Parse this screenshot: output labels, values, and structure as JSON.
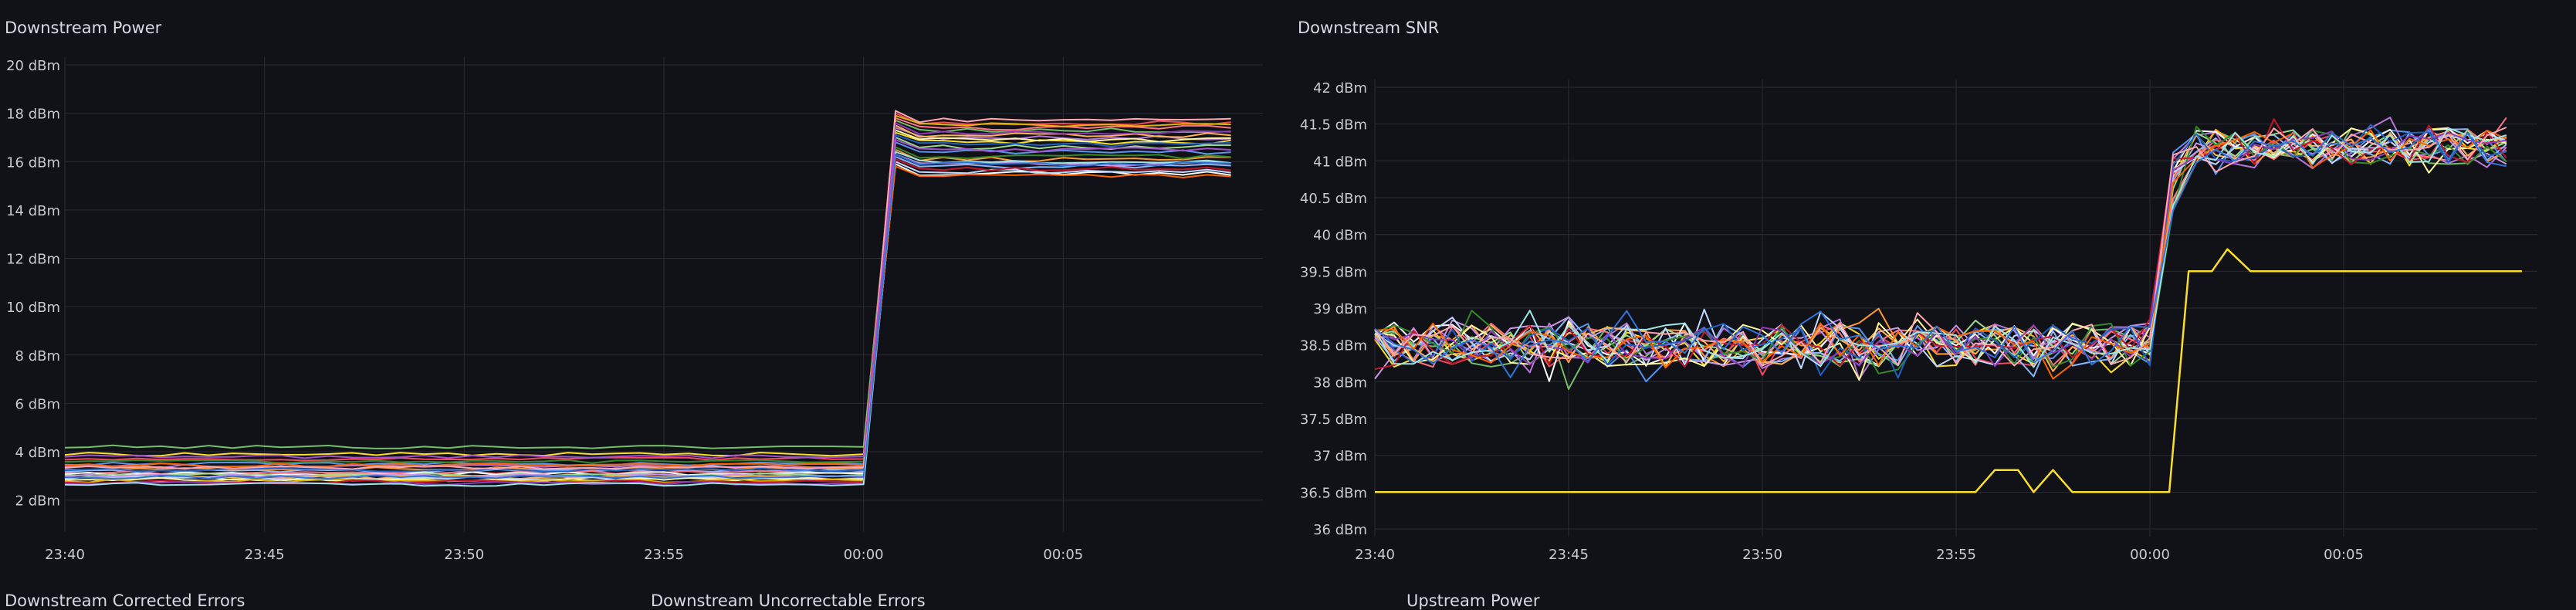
{
  "panels": {
    "power_title": "Downstream Power",
    "snr_title": "Downstream SNR",
    "bottom_titles": [
      "Downstream Corrected Errors",
      "Downstream Uncorrectable Errors",
      "Upstream Power"
    ]
  },
  "chart_data": [
    {
      "type": "line",
      "title": "Downstream Power",
      "xlabel": "",
      "ylabel": "",
      "x_ticks": [
        "23:40",
        "23:45",
        "23:50",
        "23:55",
        "00:00",
        "00:05"
      ],
      "y_ticks": [
        "2 dBm",
        "4 dBm",
        "6 dBm",
        "8 dBm",
        "10 dBm",
        "12 dBm",
        "14 dBm",
        "16 dBm",
        "18 dBm",
        "20 dBm"
      ],
      "ylim": [
        1,
        20
      ],
      "grid": true,
      "series_colors": [
        "#73bf69",
        "#fade2a",
        "#f2495c",
        "#5794f2",
        "#b877d9",
        "#ff9830",
        "#8ab8ff",
        "#ff7383",
        "#ffffff",
        "#96d98d",
        "#ca95e5",
        "#ffb357",
        "#c0d8ff",
        "#fff899",
        "#e0b400",
        "#37872d",
        "#c4162a",
        "#1f60c4",
        "#8f3bb8",
        "#fa6400",
        "#9fe5e5",
        "#ffa6b0",
        "#3274d9",
        "#a352cc"
      ],
      "series_levels": [
        {
          "before": 4.2,
          "after": 17.3
        },
        {
          "before": 3.9,
          "after": 16.8
        },
        {
          "before": 3.7,
          "after": 17.6
        },
        {
          "before": 3.5,
          "after": 16.4
        },
        {
          "before": 3.4,
          "after": 17.0
        },
        {
          "before": 3.3,
          "after": 16.1
        },
        {
          "before": 3.2,
          "after": 15.8
        },
        {
          "before": 3.15,
          "after": 17.4
        },
        {
          "before": 3.1,
          "after": 15.5
        },
        {
          "before": 3.05,
          "after": 16.6
        },
        {
          "before": 3.0,
          "after": 15.9
        },
        {
          "before": 2.95,
          "after": 17.1
        },
        {
          "before": 2.9,
          "after": 15.6
        },
        {
          "before": 2.85,
          "after": 16.9
        },
        {
          "before": 2.8,
          "after": 17.5
        },
        {
          "before": 3.6,
          "after": 16.2
        },
        {
          "before": 2.75,
          "after": 15.7
        },
        {
          "before": 3.25,
          "after": 16.7
        },
        {
          "before": 2.7,
          "after": 17.2
        },
        {
          "before": 3.45,
          "after": 15.4
        },
        {
          "before": 2.65,
          "after": 16.0
        },
        {
          "before": 3.35,
          "after": 17.7
        },
        {
          "before": 2.95,
          "after": 15.9
        },
        {
          "before": 3.8,
          "after": 16.5
        }
      ],
      "step_time": "00:01"
    },
    {
      "type": "line",
      "title": "Downstream SNR",
      "xlabel": "",
      "ylabel": "",
      "x_ticks": [
        "23:40",
        "23:45",
        "23:50",
        "23:55",
        "00:00",
        "00:05"
      ],
      "y_ticks": [
        "36 dBm",
        "36.5 dBm",
        "37 dBm",
        "37.5 dBm",
        "38 dBm",
        "38.5 dBm",
        "39 dBm",
        "39.5 dBm",
        "40 dBm",
        "40.5 dBm",
        "41 dBm",
        "41.5 dBm",
        "42 dBm"
      ],
      "ylim": [
        36,
        42
      ],
      "grid": true,
      "series_colors": [
        "#73bf69",
        "#fade2a",
        "#f2495c",
        "#5794f2",
        "#b877d9",
        "#ff9830",
        "#8ab8ff",
        "#ff7383",
        "#ffffff",
        "#96d98d",
        "#ca95e5",
        "#ffb357",
        "#c0d8ff",
        "#fff899",
        "#37872d",
        "#c4162a",
        "#1f60c4",
        "#8f3bb8",
        "#fa6400",
        "#9fe5e5",
        "#ffa6b0",
        "#3274d9"
      ],
      "noisy_range_before": [
        38.0,
        39.0
      ],
      "noisy_range_after": [
        40.8,
        41.6
      ],
      "outlier_series": {
        "color": "#fade2a",
        "before": 36.5,
        "after": 39.5,
        "bumps": [
          {
            "time": "23:56",
            "value": 36.8
          },
          {
            "time": "23:57",
            "value": 36.8
          },
          {
            "time": "00:02",
            "value": 39.8
          }
        ]
      },
      "dip_series": {
        "color": "#73bf69",
        "dips": [
          {
            "time": "23:45",
            "value": 37.9
          }
        ]
      },
      "step_time": "00:01"
    }
  ]
}
